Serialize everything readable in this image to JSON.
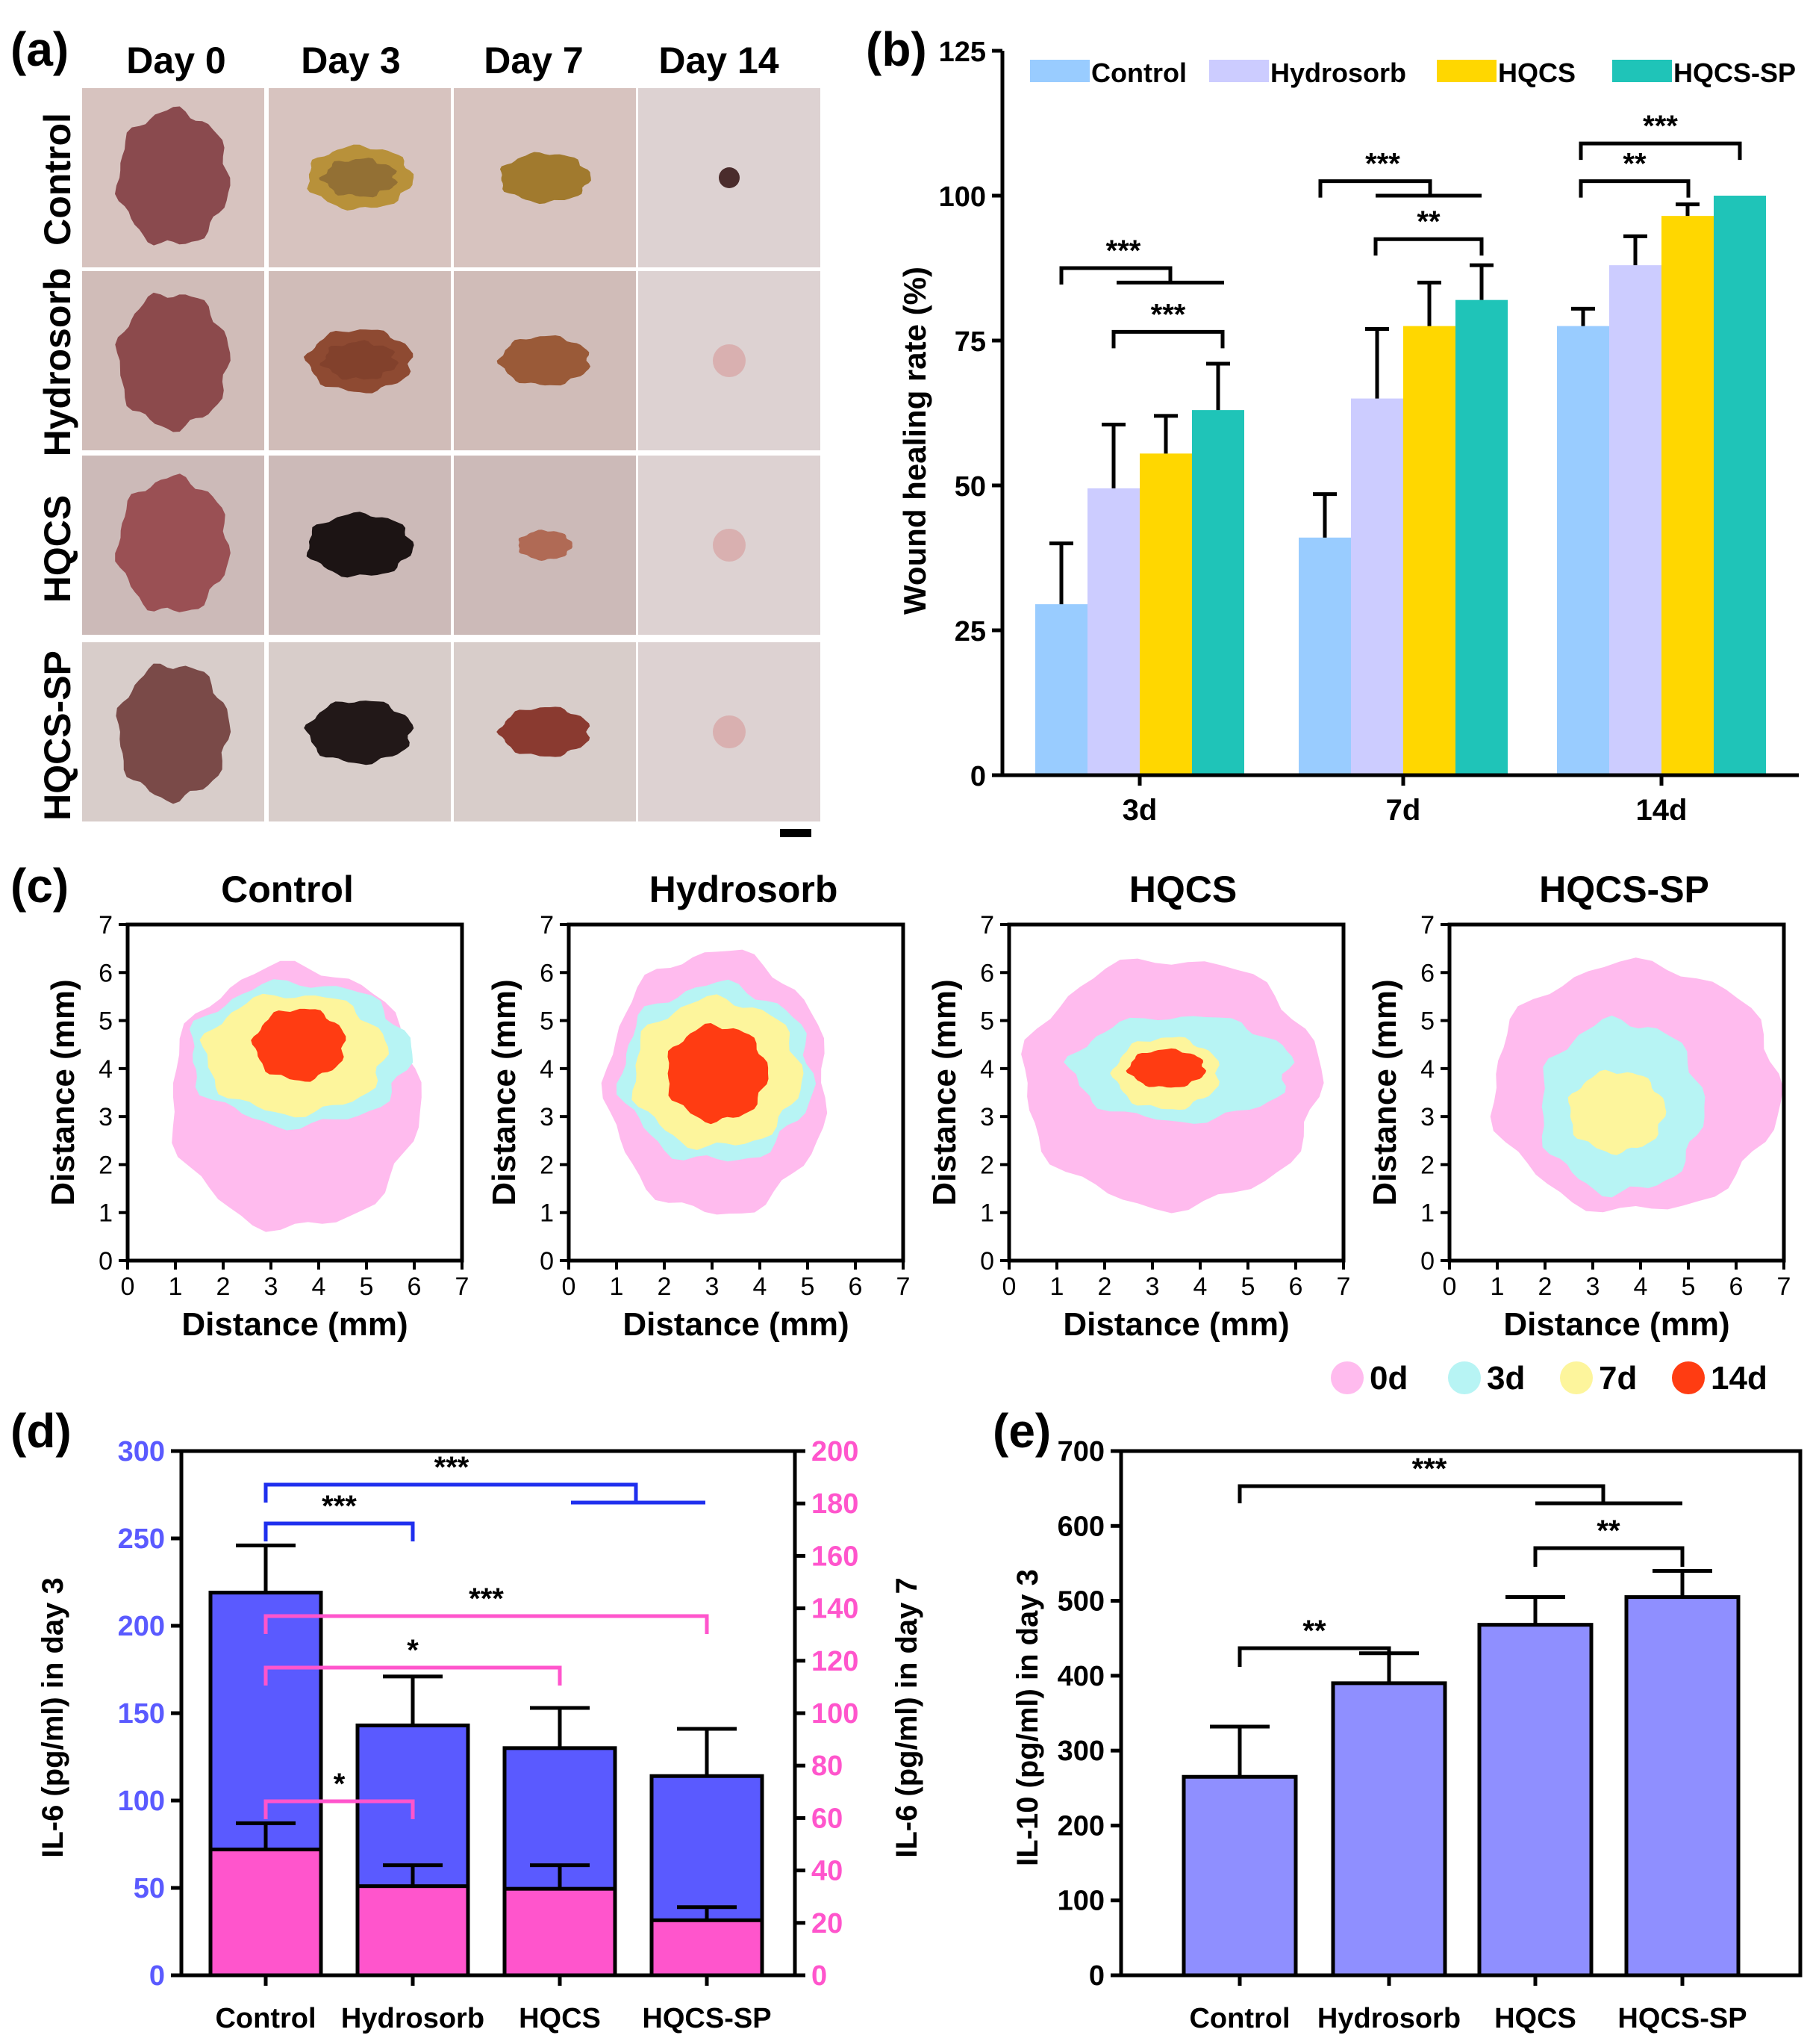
{
  "panel_labels": {
    "a": "(a)",
    "b": "(b)",
    "c": "(c)",
    "d": "(d)",
    "e": "(e)"
  },
  "colors": {
    "control": "#99ccff",
    "hydrosorb": "#ccccff",
    "hqcs": "#ffd700",
    "hqcs_sp": "#1fc4b8",
    "contour_0d": "#ffbbee",
    "contour_3d": "#b7f4f4",
    "contour_7d": "#fdf59c",
    "contour_14d": "#ff3c12",
    "il6_day3": "#5a5aff",
    "il6_day7": "#ff55cc",
    "il10": "#8f8fff",
    "sig_blue": "#1f2fee",
    "sig_pink": "#ff55cc"
  },
  "panel_a": {
    "days": [
      "Day 0",
      "Day 3",
      "Day 7",
      "Day 14"
    ],
    "groups": [
      "Control",
      "Hydrosorb",
      "HQCS",
      "HQCS-SP"
    ]
  },
  "chart_data": [
    {
      "panel": "b",
      "type": "bar",
      "ylabel": "Wound healing rate (%)",
      "xlabel": "",
      "ylim": [
        0,
        125
      ],
      "yticks": [
        0,
        25,
        50,
        75,
        100,
        125
      ],
      "categories": [
        "3d",
        "7d",
        "14d"
      ],
      "legend": "top",
      "series": [
        {
          "name": "Control",
          "values": [
            29.5,
            41,
            77.5
          ],
          "errors": [
            10.5,
            7.5,
            3
          ]
        },
        {
          "name": "Hydrosorb",
          "values": [
            49.5,
            65,
            88
          ],
          "errors": [
            11,
            12,
            5
          ]
        },
        {
          "name": "HQCS",
          "values": [
            55.5,
            77.5,
            96.5
          ],
          "errors": [
            6.5,
            7.5,
            2
          ]
        },
        {
          "name": "HQCS-SP",
          "values": [
            63,
            82,
            100
          ],
          "errors": [
            8,
            6,
            0
          ]
        }
      ],
      "significance": [
        "***",
        "***",
        "***",
        "**",
        "**",
        "***"
      ]
    },
    {
      "panel": "c",
      "type": "contour",
      "titles": [
        "Control",
        "Hydrosorb",
        "HQCS",
        "HQCS-SP"
      ],
      "xlabel": "Distance (mm)",
      "ylabel": "Distance (mm)",
      "xlim": [
        0,
        7
      ],
      "ylim": [
        0,
        7
      ],
      "ticks": [
        0,
        1,
        2,
        3,
        4,
        5,
        6,
        7
      ],
      "legend": [
        "0d",
        "3d",
        "7d",
        "14d"
      ]
    },
    {
      "panel": "d",
      "type": "bar",
      "categories": [
        "Control",
        "Hydrosorb",
        "HQCS",
        "HQCS-SP"
      ],
      "ylabel_left": "IL-6 (pg/ml) in day 3",
      "ylabel_right": "IL-6 (pg/ml) in day 7",
      "ylim_left": [
        0,
        300
      ],
      "yticks_left": [
        0,
        50,
        100,
        150,
        200,
        250,
        300
      ],
      "ylim_right": [
        0,
        200
      ],
      "yticks_right": [
        0,
        20,
        40,
        60,
        80,
        100,
        120,
        140,
        160,
        180,
        200
      ],
      "series": [
        {
          "name": "IL-6 day 3",
          "axis": "left",
          "values": [
            219,
            143,
            130,
            114
          ],
          "errors": [
            27,
            28,
            23,
            27
          ]
        },
        {
          "name": "IL-6 day 7",
          "axis": "right",
          "values": [
            48,
            34,
            33,
            21
          ],
          "errors": [
            10,
            8,
            9,
            5
          ]
        }
      ],
      "significance": [
        "***",
        "***",
        "***",
        "*",
        "*"
      ]
    },
    {
      "panel": "e",
      "type": "bar",
      "categories": [
        "Control",
        "Hydrosorb",
        "HQCS",
        "HQCS-SP"
      ],
      "ylabel": "IL-10 (pg/ml) in day 3",
      "ylim": [
        0,
        700
      ],
      "yticks": [
        0,
        100,
        200,
        300,
        400,
        500,
        600,
        700
      ],
      "series": [
        {
          "name": "IL-10 day 3",
          "values": [
            265,
            390,
            468,
            505
          ],
          "errors": [
            67,
            40,
            37,
            35
          ]
        }
      ],
      "significance": [
        "***",
        "**",
        "**"
      ]
    }
  ]
}
